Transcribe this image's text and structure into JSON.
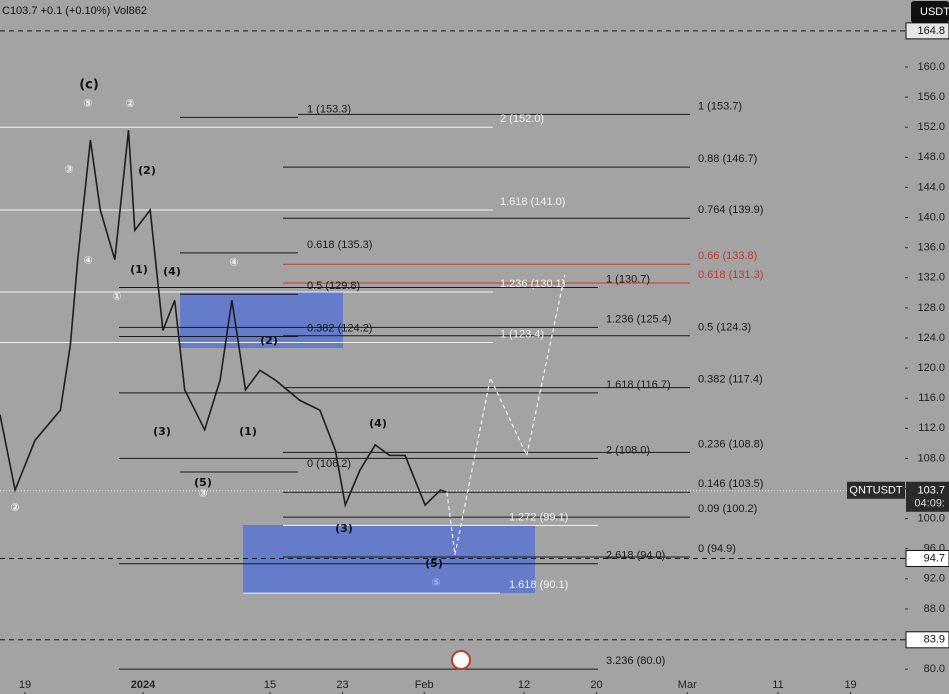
{
  "header": {
    "quote": "C103.7 +0.1 (+0.10%) Vol862",
    "currency": "USDT"
  },
  "chart_data": {
    "type": "line",
    "background": "#a3a3a3",
    "xlim": [
      -2.76,
      97
    ],
    "ylim": [
      76.7,
      168.9
    ],
    "xticks": [
      {
        "value": 0,
        "label": "19"
      },
      {
        "value": 13,
        "label": "2024"
      },
      {
        "value": 27,
        "label": "15"
      },
      {
        "value": 35,
        "label": "23"
      },
      {
        "value": 44,
        "label": "Feb"
      },
      {
        "value": 55,
        "label": "12"
      },
      {
        "value": 63,
        "label": "20"
      },
      {
        "value": 73,
        "label": "Mar"
      },
      {
        "value": 83,
        "label": "11"
      },
      {
        "value": 91,
        "label": "19"
      }
    ],
    "yticks": [
      {
        "value": 80,
        "label": "80.0"
      },
      {
        "value": 84,
        "label": "84.0"
      },
      {
        "value": 88,
        "label": "88.0"
      },
      {
        "value": 92,
        "label": "92.0"
      },
      {
        "value": 96,
        "label": "96.0"
      },
      {
        "value": 100,
        "label": "100.0"
      },
      {
        "value": 104,
        "label": "104.0"
      },
      {
        "value": 108,
        "label": "108.0"
      },
      {
        "value": 112,
        "label": "112.0"
      },
      {
        "value": 116,
        "label": "116.0"
      },
      {
        "value": 120,
        "label": "120.0"
      },
      {
        "value": 124,
        "label": "124.0"
      },
      {
        "value": 128,
        "label": "128.0"
      },
      {
        "value": 132,
        "label": "132.0"
      },
      {
        "value": 136,
        "label": "136.0"
      },
      {
        "value": 140,
        "label": "140.0"
      },
      {
        "value": 144,
        "label": "144.0"
      },
      {
        "value": 148,
        "label": "148.0"
      },
      {
        "value": 152,
        "label": "152.0"
      },
      {
        "value": 156,
        "label": "156.0"
      },
      {
        "value": 160,
        "label": "160.0"
      }
    ],
    "series": [
      {
        "name": "QNTUSDT",
        "color": "#1e1e1e",
        "dashed": false,
        "x": [
          -2.76,
          -1.1,
          1.1,
          3.9,
          5.0,
          5.8,
          7.2,
          8.3,
          9.9,
          11.4,
          12.1,
          13.8,
          15.2,
          16.5,
          17.6,
          19.8,
          21.5,
          22.8,
          24.3,
          25.9,
          27.6,
          30.3,
          32.5,
          34.2,
          35.3,
          36.9,
          38.6,
          40.2,
          41.9,
          44.1,
          45.8,
          46.5
        ],
        "values": [
          113.8,
          103.8,
          110.4,
          114.4,
          123.1,
          134.4,
          150.3,
          141.0,
          134.4,
          151.6,
          138.3,
          141.0,
          125.0,
          129.0,
          117.1,
          111.8,
          118.4,
          129.0,
          117.1,
          119.7,
          118.4,
          115.7,
          114.4,
          109.1,
          101.8,
          106.4,
          109.8,
          108.4,
          108.4,
          101.8,
          103.8,
          103.5
        ]
      },
      {
        "name": "Projection",
        "color": "#f2f2f2",
        "dashed": true,
        "x": [
          46.5,
          47.4,
          51.3,
          55.3,
          59.5
        ],
        "values": [
          103.5,
          95.2,
          118.7,
          108.4,
          132.4
        ]
      }
    ],
    "levels": [
      {
        "label": "1 (153.3)",
        "value": 153.3,
        "color": "#1a1a1a"
      },
      {
        "label": "1 (153.7)",
        "value": 153.7,
        "color": "#1a1a1a"
      },
      {
        "label": "2 (152.0)",
        "value": 152.0,
        "color": "#f2f2f2"
      },
      {
        "label": "0.88 (146.7)",
        "value": 146.7,
        "color": "#1a1a1a"
      },
      {
        "label": "1.618 (141.0)",
        "value": 141.0,
        "color": "#f2f2f2"
      },
      {
        "label": "0.764 (139.9)",
        "value": 139.9,
        "color": "#1a1a1a"
      },
      {
        "label": "0.618 (135.3)",
        "value": 135.3,
        "color": "#1a1a1a"
      },
      {
        "label": "0.66 (133.8)",
        "value": 133.8,
        "color": "#c0392b"
      },
      {
        "label": "0.618 (131.3)",
        "value": 131.3,
        "color": "#c0392b"
      },
      {
        "label": "1.236 (130.1)",
        "value": 130.1,
        "color": "#f2f2f2"
      },
      {
        "label": "1 (130.7)",
        "value": 130.7,
        "color": "#1a1a1a"
      },
      {
        "label": "0.5 (129.8)",
        "value": 129.8,
        "color": "#1a1a1a"
      },
      {
        "label": "0.382 (124.2)",
        "value": 124.2,
        "color": "#1a1a1a"
      },
      {
        "label": "1.236 (125.4)",
        "value": 125.4,
        "color": "#1a1a1a"
      },
      {
        "label": "0.5 (124.3)",
        "value": 124.3,
        "color": "#1a1a1a"
      },
      {
        "label": "1 (123.4)",
        "value": 123.4,
        "color": "#f2f2f2"
      },
      {
        "label": "1.618 (116.7)",
        "value": 116.7,
        "color": "#1a1a1a"
      },
      {
        "label": "0.382 (117.4)",
        "value": 117.4,
        "color": "#1a1a1a"
      },
      {
        "label": "0.236 (108.8)",
        "value": 108.8,
        "color": "#1a1a1a"
      },
      {
        "label": "2 (108.0)",
        "value": 108.0,
        "color": "#1a1a1a"
      },
      {
        "label": "0 (106.2)",
        "value": 106.2,
        "color": "#1a1a1a"
      },
      {
        "label": "0.146 (103.5)",
        "value": 103.5,
        "color": "#1a1a1a"
      },
      {
        "label": "0.09 (100.2)",
        "value": 100.2,
        "color": "#1a1a1a"
      },
      {
        "label": "1.272 (99.1)",
        "value": 99.1,
        "color": "#f2f2f2"
      },
      {
        "label": "0 (94.9)",
        "value": 94.9,
        "color": "#1a1a1a"
      },
      {
        "label": "2.618 (94.0)",
        "value": 94.0,
        "color": "#1a1a1a"
      },
      {
        "label": "1.618 (90.1)",
        "value": 90.1,
        "color": "#f2f2f2"
      },
      {
        "label": "3.236 (80.0)",
        "value": 80.0,
        "color": "#1a1a1a"
      }
    ],
    "annotations": [
      {
        "text": "(c)",
        "color": "#111"
      },
      {
        "text": "⑤",
        "color": "#f2f2f2"
      },
      {
        "text": "②",
        "color": "#f2f2f2"
      },
      {
        "text": "③",
        "color": "#f2f2f2"
      },
      {
        "text": "(2)",
        "color": "#111"
      },
      {
        "text": "④",
        "color": "#f2f2f2"
      },
      {
        "text": "(1)",
        "color": "#111"
      },
      {
        "text": "(4)",
        "color": "#111"
      },
      {
        "text": "①",
        "color": "#f2f2f2"
      },
      {
        "text": "④",
        "color": "#f2f2f2"
      },
      {
        "text": "(2)",
        "color": "#111"
      },
      {
        "text": "(3)",
        "color": "#111"
      },
      {
        "text": "(1)",
        "color": "#111"
      },
      {
        "text": "(4)",
        "color": "#111"
      },
      {
        "text": "(5)",
        "color": "#111"
      },
      {
        "text": "③",
        "color": "#f2f2f2"
      },
      {
        "text": "②",
        "color": "#f2f2f2"
      },
      {
        "text": "(3)",
        "color": "#111"
      },
      {
        "text": "(5)",
        "color": "#111"
      },
      {
        "text": "⑤",
        "color": "#9ab4ff"
      }
    ],
    "price_markers": [
      164.8,
      94.7,
      83.9
    ],
    "current_price": {
      "symbol": "QNTUSDT",
      "value": 103.7,
      "countdown": "04:09:"
    }
  }
}
